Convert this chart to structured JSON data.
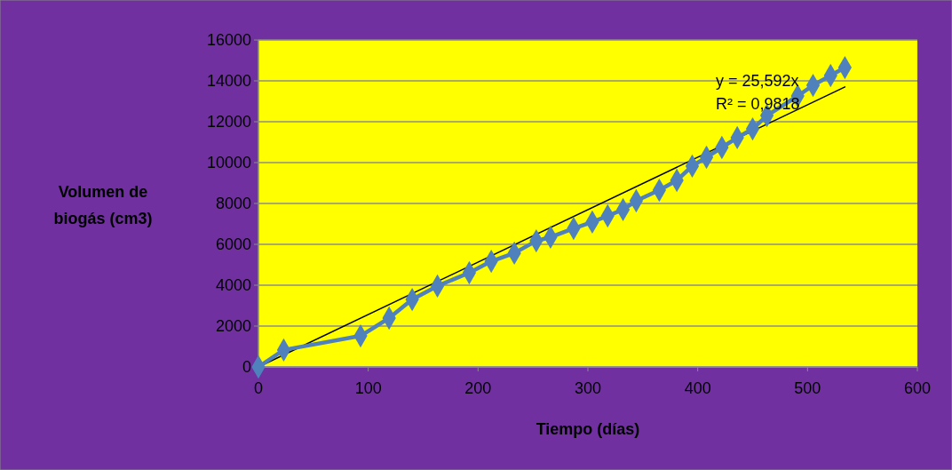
{
  "chart_data": {
    "type": "line",
    "xlabel": "Tiempo (días)",
    "ylabel": "Volumen de biogás (cm3)",
    "x": [
      0,
      23,
      93,
      119,
      140,
      163,
      192,
      212,
      233,
      253,
      266,
      287,
      304,
      318,
      332,
      344,
      365,
      381,
      395,
      408,
      422,
      436,
      450,
      463,
      491,
      505,
      521,
      534
    ],
    "series": [
      {
        "color": "#4f81bd",
        "marker": "diamond",
        "values": [
          0,
          830,
          1520,
          2390,
          3300,
          3960,
          4610,
          5170,
          5570,
          6170,
          6350,
          6780,
          7090,
          7390,
          7700,
          8130,
          8650,
          9130,
          9830,
          10260,
          10740,
          11220,
          11650,
          12300,
          13260,
          13780,
          14260,
          14650
        ]
      },
      {
        "type": "line",
        "color": "#000000",
        "marker": "none",
        "x": [
          0,
          534
        ],
        "values": [
          0,
          13700
        ]
      }
    ],
    "annotations": [
      "y = 25,592x",
      "R² = 0,9818"
    ],
    "xlim": [
      0,
      600
    ],
    "xticks": [
      0,
      100,
      200,
      300,
      400,
      500,
      600
    ],
    "ylim": [
      0,
      16000
    ],
    "yticks": [
      0,
      2000,
      4000,
      6000,
      8000,
      10000,
      12000,
      14000,
      16000
    ],
    "grid": "y"
  }
}
